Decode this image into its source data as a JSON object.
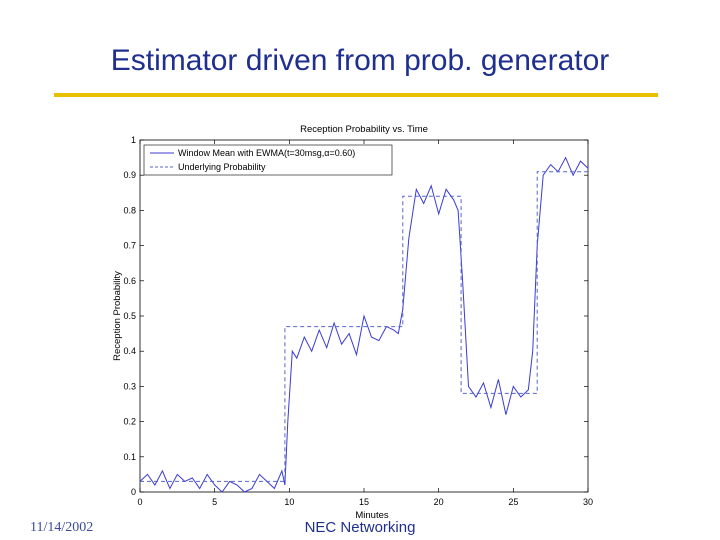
{
  "slide": {
    "title": "Estimator driven from prob. generator",
    "footer_date": "11/14/2002",
    "footer_org": "NEC Networking"
  },
  "colors": {
    "title": "#1f2f8f",
    "rule": "#e8c000",
    "window_mean": "#3b3bd4",
    "underlying": "#5566cc"
  },
  "chart_data": {
    "type": "line",
    "title": "Reception Probability vs. Time",
    "xlabel": "Minutes",
    "ylabel": "Reception Probability",
    "xlim": [
      0,
      30
    ],
    "ylim": [
      0,
      1
    ],
    "xticks": [
      0,
      5,
      10,
      15,
      20,
      25,
      30
    ],
    "yticks": [
      0,
      0.1,
      0.2,
      0.3,
      0.4,
      0.5,
      0.6,
      0.7,
      0.8,
      0.9,
      1
    ],
    "grid": false,
    "legend_position": "top-left",
    "series": [
      {
        "name": "Window Mean with EWMA(t=30msg,α=0.60)",
        "style": "solid",
        "x": [
          0,
          0.5,
          1,
          1.5,
          2,
          2.5,
          3,
          3.5,
          4,
          4.5,
          5,
          5.5,
          6,
          6.5,
          7,
          7.5,
          8,
          8.5,
          9,
          9.5,
          9.7,
          9.9,
          10.2,
          10.5,
          11,
          11.5,
          12,
          12.5,
          13,
          13.5,
          14,
          14.5,
          15,
          15.5,
          16,
          16.5,
          17,
          17.3,
          17.6,
          18,
          18.5,
          19,
          19.5,
          20,
          20.5,
          21,
          21.3,
          21.6,
          22,
          22.5,
          23,
          23.5,
          24,
          24.5,
          25,
          25.5,
          26,
          26.3,
          26.6,
          27,
          27.5,
          28,
          28.5,
          29,
          29.5,
          30
        ],
        "y": [
          0.03,
          0.05,
          0.02,
          0.06,
          0.01,
          0.05,
          0.03,
          0.04,
          0.01,
          0.05,
          0.02,
          0.0,
          0.03,
          0.02,
          0.0,
          0.01,
          0.05,
          0.03,
          0.01,
          0.06,
          0.02,
          0.2,
          0.4,
          0.38,
          0.44,
          0.4,
          0.46,
          0.41,
          0.48,
          0.42,
          0.45,
          0.39,
          0.5,
          0.44,
          0.43,
          0.47,
          0.46,
          0.45,
          0.52,
          0.72,
          0.86,
          0.82,
          0.87,
          0.79,
          0.86,
          0.83,
          0.8,
          0.6,
          0.3,
          0.27,
          0.31,
          0.24,
          0.32,
          0.22,
          0.3,
          0.27,
          0.29,
          0.4,
          0.7,
          0.9,
          0.93,
          0.91,
          0.95,
          0.9,
          0.94,
          0.92
        ]
      },
      {
        "name": "Underlying Probability",
        "style": "dashed",
        "x": [
          0,
          9.7,
          9.7,
          17.6,
          17.6,
          21.5,
          21.5,
          26.6,
          26.6,
          30
        ],
        "y": [
          0.03,
          0.03,
          0.47,
          0.47,
          0.84,
          0.84,
          0.28,
          0.28,
          0.91,
          0.91
        ]
      }
    ]
  }
}
